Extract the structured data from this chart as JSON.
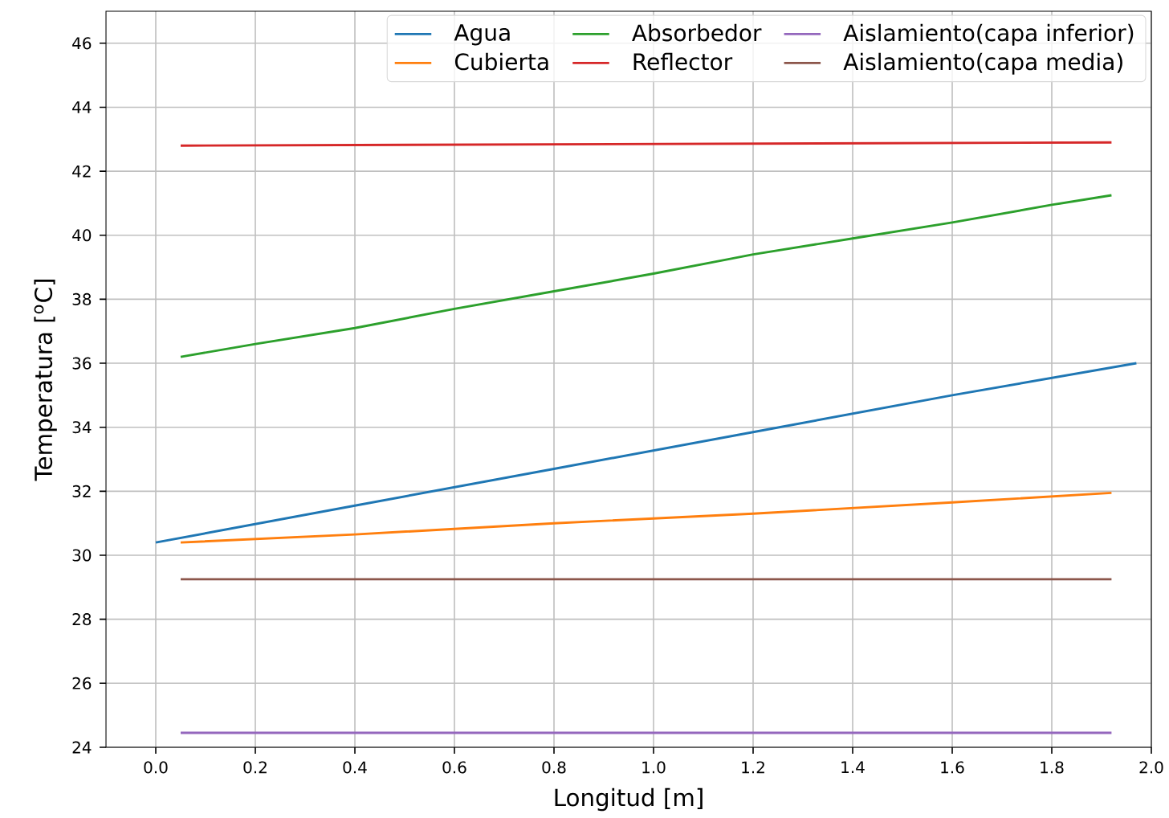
{
  "chart_data": {
    "type": "line",
    "xlabel": "Longitud [m]",
    "ylabel": "Temperatura [$^{o}$C]",
    "xlim": [
      -0.1,
      2.0
    ],
    "ylim": [
      24,
      47
    ],
    "xticks": [
      {
        "value": 0,
        "label": "0.0"
      },
      0.2,
      0.4,
      0.6,
      0.8,
      {
        "value": 1,
        "label": "1.0"
      },
      1.2,
      1.4,
      1.6,
      1.8,
      {
        "value": 2,
        "label": "2.0"
      }
    ],
    "yticks": [
      24,
      26,
      28,
      30,
      32,
      34,
      36,
      38,
      40,
      42,
      44,
      46
    ],
    "grid": true,
    "legend": "top right",
    "marker": "none",
    "line_style": "solid",
    "series": [
      {
        "name": "Agua",
        "color": "#1f77b4",
        "x": [
          0,
          0.4,
          0.8,
          1.2,
          1.6,
          1.97
        ],
        "values": [
          30.4,
          31.55,
          32.7,
          33.85,
          35.0,
          36.0
        ]
      },
      {
        "name": "Cubierta",
        "color": "#ff7f0e",
        "x": [
          0.05,
          0.4,
          0.8,
          1.2,
          1.6,
          1.92
        ],
        "values": [
          30.4,
          30.65,
          31.0,
          31.3,
          31.65,
          31.95
        ]
      },
      {
        "name": "Absorbedor",
        "color": "#2ca02c",
        "x": [
          0.05,
          0.2,
          0.4,
          0.6,
          0.8,
          1.0,
          1.15,
          1.2,
          1.4,
          1.6,
          1.8,
          1.92
        ],
        "values": [
          36.2,
          36.6,
          37.1,
          37.7,
          38.25,
          38.8,
          39.25,
          39.4,
          39.9,
          40.4,
          40.95,
          41.25
        ]
      },
      {
        "name": "Reflector",
        "color": "#d62728",
        "x": [
          0.05,
          1.92
        ],
        "values": [
          42.8,
          42.9
        ]
      },
      {
        "name": "Aislamiento(capa inferior)",
        "color": "#9467bd",
        "x": [
          0.05,
          1.92
        ],
        "values": [
          24.45,
          24.45
        ]
      },
      {
        "name": "Aislamiento(capa media)",
        "color": "#8c564b",
        "x": [
          0.05,
          1.92
        ],
        "values": [
          29.25,
          29.25
        ]
      }
    ]
  }
}
